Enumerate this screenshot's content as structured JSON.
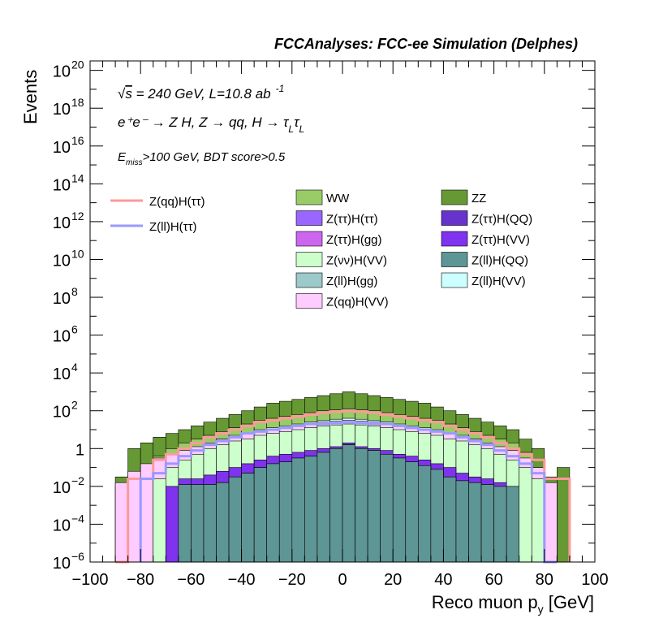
{
  "chart_data": {
    "type": "area",
    "title": "FCCAnalyses: FCC-ee Simulation (Delphes)",
    "xlabel": "Reco muon p",
    "xlabel_sub": "y",
    "xlabel_unit": " [GeV]",
    "ylabel": "Events",
    "y_scale": "log",
    "xlim": [
      -100,
      100
    ],
    "ylim_log10": [
      -6,
      20.5
    ],
    "bin_edges": [
      -100,
      -95,
      -90,
      -85,
      -80,
      -75,
      -70,
      -65,
      -60,
      -55,
      -50,
      -45,
      -40,
      -35,
      -30,
      -25,
      -20,
      -15,
      -10,
      -5,
      0,
      5,
      10,
      15,
      20,
      25,
      30,
      35,
      40,
      45,
      50,
      55,
      60,
      65,
      70,
      75,
      80,
      85,
      90,
      95,
      100
    ],
    "x_ticks": [
      {
        "value": -100,
        "label": "−100"
      },
      {
        "value": -80,
        "label": "−80"
      },
      {
        "value": -60,
        "label": "−60"
      },
      {
        "value": -40,
        "label": "−40"
      },
      {
        "value": -20,
        "label": "−20"
      },
      {
        "value": 0,
        "label": "0"
      },
      {
        "value": 20,
        "label": "20"
      },
      {
        "value": 40,
        "label": "40"
      },
      {
        "value": 60,
        "label": "60"
      },
      {
        "value": 80,
        "label": "80"
      },
      {
        "value": 100,
        "label": "100"
      }
    ],
    "y_ticks": [
      {
        "exp": -6,
        "base": "10",
        "sup": "−6"
      },
      {
        "exp": -4,
        "base": "10",
        "sup": "−4"
      },
      {
        "exp": -2,
        "base": "10",
        "sup": "−2"
      },
      {
        "exp": 0,
        "base": "1",
        "sup": ""
      },
      {
        "exp": 2,
        "base": "10",
        "sup": "2"
      },
      {
        "exp": 4,
        "base": "10",
        "sup": "4"
      },
      {
        "exp": 6,
        "base": "10",
        "sup": "6"
      },
      {
        "exp": 8,
        "base": "10",
        "sup": "8"
      },
      {
        "exp": 10,
        "base": "10",
        "sup": "10"
      },
      {
        "exp": 12,
        "base": "10",
        "sup": "12"
      },
      {
        "exp": 14,
        "base": "10",
        "sup": "14"
      },
      {
        "exp": 16,
        "base": "10",
        "sup": "16"
      },
      {
        "exp": 18,
        "base": "10",
        "sup": "18"
      },
      {
        "exp": 20,
        "base": "10",
        "sup": "20"
      }
    ],
    "annotations": {
      "line1_sqrt": "√",
      "line1_s": "s",
      "line1_rest": " = 240 GeV, L=10.8 ab",
      "line1_sup": "-1",
      "line2": "e⁺e⁻ → Z H, Z → qq, H → τ",
      "line2_sub1": "L",
      "line2_tau": "τ",
      "line2_sub2": "L",
      "line3_E": "E",
      "line3_sub": "miss",
      "line3_rest": ">100 GeV, BDT score>0.5"
    },
    "stack_top_log10": [
      null,
      null,
      -2.0,
      0.0,
      0.3,
      0.6,
      0.8,
      1.0,
      1.2,
      1.4,
      1.6,
      1.8,
      2.0,
      2.2,
      2.4,
      2.5,
      2.6,
      2.7,
      2.8,
      2.9,
      3.0,
      2.9,
      2.8,
      2.7,
      2.6,
      2.5,
      2.4,
      2.2,
      2.0,
      1.8,
      1.6,
      1.4,
      1.2,
      1.0,
      0.5,
      0.0,
      -1.5,
      -1.0,
      null,
      null
    ],
    "series": [
      {
        "name": "Z(ll)H(QQ)",
        "color": "#5e9595",
        "values_log10": [
          null,
          null,
          null,
          null,
          null,
          null,
          null,
          -1.9,
          -1.9,
          -1.9,
          -1.8,
          -1.5,
          -1.3,
          -1.0,
          -0.8,
          -0.7,
          -0.5,
          -0.4,
          -0.2,
          0.0,
          0.2,
          0.0,
          -0.1,
          -0.3,
          -0.5,
          -0.7,
          -0.9,
          -1.1,
          -1.5,
          -1.7,
          -1.8,
          -1.9,
          -2.0,
          -2.0,
          null,
          null,
          null,
          null,
          null,
          null
        ]
      },
      {
        "name": "Z(ll)H(gg)",
        "color": "#9cc9c9",
        "values_log10": [
          null,
          null,
          null,
          null,
          null,
          null,
          null,
          -1.9,
          -1.9,
          -1.9,
          -1.8,
          -1.5,
          -1.3,
          -1.0,
          -0.8,
          -0.7,
          -0.5,
          -0.4,
          -0.2,
          0.0,
          0.2,
          0.0,
          -0.1,
          -0.3,
          -0.5,
          -0.7,
          -0.9,
          -1.1,
          -1.5,
          -1.7,
          -1.8,
          -1.9,
          -2.0,
          -2.0,
          null,
          null,
          null,
          null,
          null,
          null
        ]
      },
      {
        "name": "Z(ττ)H(VV)",
        "color": "#7f33ee",
        "values_log10": [
          null,
          null,
          null,
          null,
          null,
          null,
          -2.0,
          -1.6,
          -1.6,
          -1.4,
          -1.2,
          -1.0,
          -0.8,
          -0.6,
          -0.4,
          -0.3,
          -0.2,
          -0.1,
          0.0,
          0.1,
          0.3,
          0.1,
          0.0,
          -0.1,
          -0.3,
          -0.4,
          -0.6,
          -0.8,
          -1.0,
          -1.3,
          -1.5,
          -1.6,
          -1.8,
          -2.0,
          null,
          null,
          null,
          null,
          null,
          null
        ]
      },
      {
        "name": "Z(νν)H(VV)",
        "color": "#ccffcc",
        "values_log10": [
          null,
          null,
          null,
          null,
          null,
          -1.6,
          -1.0,
          -0.6,
          -0.3,
          0.0,
          0.2,
          0.4,
          0.5,
          0.7,
          0.8,
          0.9,
          1.0,
          1.1,
          1.2,
          1.25,
          1.3,
          1.25,
          1.2,
          1.1,
          1.0,
          0.9,
          0.8,
          0.7,
          0.5,
          0.4,
          0.2,
          0.0,
          -0.3,
          -0.6,
          -1.0,
          -1.6,
          null,
          null,
          null,
          null
        ]
      },
      {
        "name": "Z(qq)H(VV)",
        "color": "#ffccff",
        "values_log10": [
          null,
          null,
          -1.8,
          -1.2,
          -0.8,
          -0.5,
          -0.3,
          -0.1,
          0.1,
          0.3,
          0.5,
          0.6,
          0.8,
          0.9,
          1.0,
          1.1,
          1.2,
          1.3,
          1.4,
          1.45,
          1.5,
          1.45,
          1.4,
          1.3,
          1.2,
          1.1,
          1.0,
          0.9,
          0.8,
          0.6,
          0.5,
          0.3,
          0.1,
          -0.1,
          -0.5,
          -1.0,
          -1.8,
          null,
          null,
          null
        ]
      },
      {
        "name": "Z(ll)H(VV)",
        "color": "#ccffff",
        "values_log10": [
          null,
          null,
          -2.0,
          -1.5,
          -1.0,
          -0.7,
          -0.4,
          -0.2,
          0.0,
          0.3,
          0.5,
          0.7,
          0.8,
          1.0,
          1.1,
          1.2,
          1.3,
          1.4,
          1.5,
          1.55,
          1.6,
          1.55,
          1.5,
          1.4,
          1.3,
          1.2,
          1.1,
          1.0,
          0.8,
          0.7,
          0.5,
          0.3,
          0.0,
          -0.2,
          -0.6,
          -1.2,
          -2.0,
          null,
          null,
          null
        ]
      },
      {
        "name": "Z(ττ)H(gg)",
        "color": "#cc66ee",
        "values_log10": [
          null,
          null,
          null,
          null,
          null,
          null,
          null,
          -1.5,
          -1.2,
          -0.9,
          -0.6,
          -0.4,
          -0.2,
          0.0,
          0.2,
          0.3,
          0.4,
          0.5,
          0.6,
          0.65,
          0.7,
          0.65,
          0.6,
          0.5,
          0.4,
          0.3,
          0.2,
          0.0,
          -0.2,
          -0.4,
          -0.6,
          -0.9,
          -1.2,
          -1.5,
          null,
          null,
          null,
          null,
          null,
          null
        ]
      },
      {
        "name": "Z(ττ)H(QQ)",
        "color": "#6633cc",
        "values_log10": [
          null,
          null,
          null,
          null,
          null,
          null,
          null,
          -1.3,
          -1.0,
          -0.7,
          -0.4,
          -0.2,
          0.0,
          0.2,
          0.4,
          0.5,
          0.6,
          0.7,
          0.8,
          0.85,
          0.9,
          0.85,
          0.8,
          0.7,
          0.6,
          0.5,
          0.4,
          0.2,
          0.0,
          -0.2,
          -0.4,
          -0.7,
          -1.0,
          -1.3,
          null,
          null,
          null,
          null,
          null,
          null
        ]
      },
      {
        "name": "Z(ττ)H(ττ)",
        "color": "#9966ff",
        "values_log10": [
          null,
          null,
          null,
          null,
          null,
          null,
          -1.5,
          -1.0,
          -0.7,
          -0.4,
          -0.1,
          0.1,
          0.3,
          0.5,
          0.7,
          0.8,
          0.9,
          1.0,
          1.1,
          1.15,
          1.2,
          1.15,
          1.1,
          1.0,
          0.9,
          0.8,
          0.7,
          0.5,
          0.3,
          0.1,
          -0.1,
          -0.4,
          -0.7,
          -1.0,
          -1.5,
          null,
          null,
          null,
          null,
          null
        ]
      },
      {
        "name": "WW",
        "color": "#99cc66",
        "values_log10": [
          null,
          null,
          null,
          null,
          -1.0,
          -0.4,
          0.0,
          0.3,
          0.5,
          0.7,
          0.9,
          1.1,
          1.3,
          1.5,
          1.6,
          1.7,
          1.8,
          1.9,
          2.0,
          2.05,
          2.1,
          2.05,
          2.0,
          1.9,
          1.8,
          1.7,
          1.6,
          1.5,
          1.3,
          1.1,
          0.9,
          0.7,
          0.5,
          0.3,
          -0.2,
          -1.0,
          null,
          null,
          null,
          null
        ]
      },
      {
        "name": "ZZ",
        "color": "#669933",
        "values_log10": [
          null,
          null,
          -1.5,
          0.0,
          0.3,
          0.6,
          0.8,
          1.0,
          1.2,
          1.4,
          1.6,
          1.8,
          2.0,
          2.2,
          2.4,
          2.5,
          2.6,
          2.7,
          2.8,
          2.9,
          3.0,
          2.9,
          2.8,
          2.7,
          2.6,
          2.5,
          2.4,
          2.2,
          2.0,
          1.8,
          1.6,
          1.4,
          1.2,
          1.0,
          0.5,
          0.0,
          -1.5,
          -1.0,
          null,
          null
        ]
      }
    ],
    "overlay_lines": [
      {
        "name": "Z(qq)H(ττ)",
        "color": "#ff9999",
        "values_log10": [
          null,
          null,
          -6,
          -1.6,
          -1.6,
          -0.6,
          -0.3,
          0.0,
          0.3,
          0.6,
          0.8,
          1.0,
          1.2,
          1.4,
          1.5,
          1.6,
          1.7,
          1.8,
          1.9,
          1.95,
          2.0,
          1.95,
          1.9,
          1.8,
          1.7,
          1.6,
          1.5,
          1.4,
          1.2,
          1.0,
          0.8,
          0.6,
          0.3,
          0.0,
          -0.3,
          -0.6,
          -1.6,
          -1.6,
          null,
          null
        ]
      },
      {
        "name": "Z(ll)H(ττ)",
        "color": "#9999ff",
        "values_log10": [
          null,
          null,
          null,
          null,
          -1.6,
          -1.3,
          -0.8,
          -0.4,
          -0.1,
          0.2,
          0.4,
          0.6,
          0.8,
          0.9,
          1.0,
          1.1,
          1.2,
          1.3,
          1.3,
          1.35,
          1.4,
          1.35,
          1.3,
          1.3,
          1.2,
          1.1,
          1.0,
          0.9,
          0.8,
          0.6,
          0.4,
          0.2,
          -0.1,
          -0.4,
          -0.8,
          -1.3,
          -6,
          null,
          null,
          null
        ]
      }
    ],
    "legend_lines": [
      "Z(qq)H(ττ)",
      "Z(ll)H(ττ)"
    ],
    "legend_boxes": [
      {
        "name": "WW",
        "color": "#99cc66"
      },
      {
        "name": "ZZ",
        "color": "#669933"
      },
      {
        "name": "Z(ττ)H(ττ)",
        "color": "#9966ff"
      },
      {
        "name": "Z(ττ)H(QQ)",
        "color": "#6633cc"
      },
      {
        "name": "Z(ττ)H(gg)",
        "color": "#cc66ee"
      },
      {
        "name": "Z(ττ)H(VV)",
        "color": "#7f33ee"
      },
      {
        "name": "Z(νν)H(VV)",
        "color": "#ccffcc"
      },
      {
        "name": "Z(ll)H(QQ)",
        "color": "#5e9595"
      },
      {
        "name": "Z(ll)H(gg)",
        "color": "#9cc9c9"
      },
      {
        "name": "Z(ll)H(VV)",
        "color": "#ccffff"
      },
      {
        "name": "Z(qq)H(VV)",
        "color": "#ffccff"
      }
    ],
    "legend_placement": "top-right"
  }
}
